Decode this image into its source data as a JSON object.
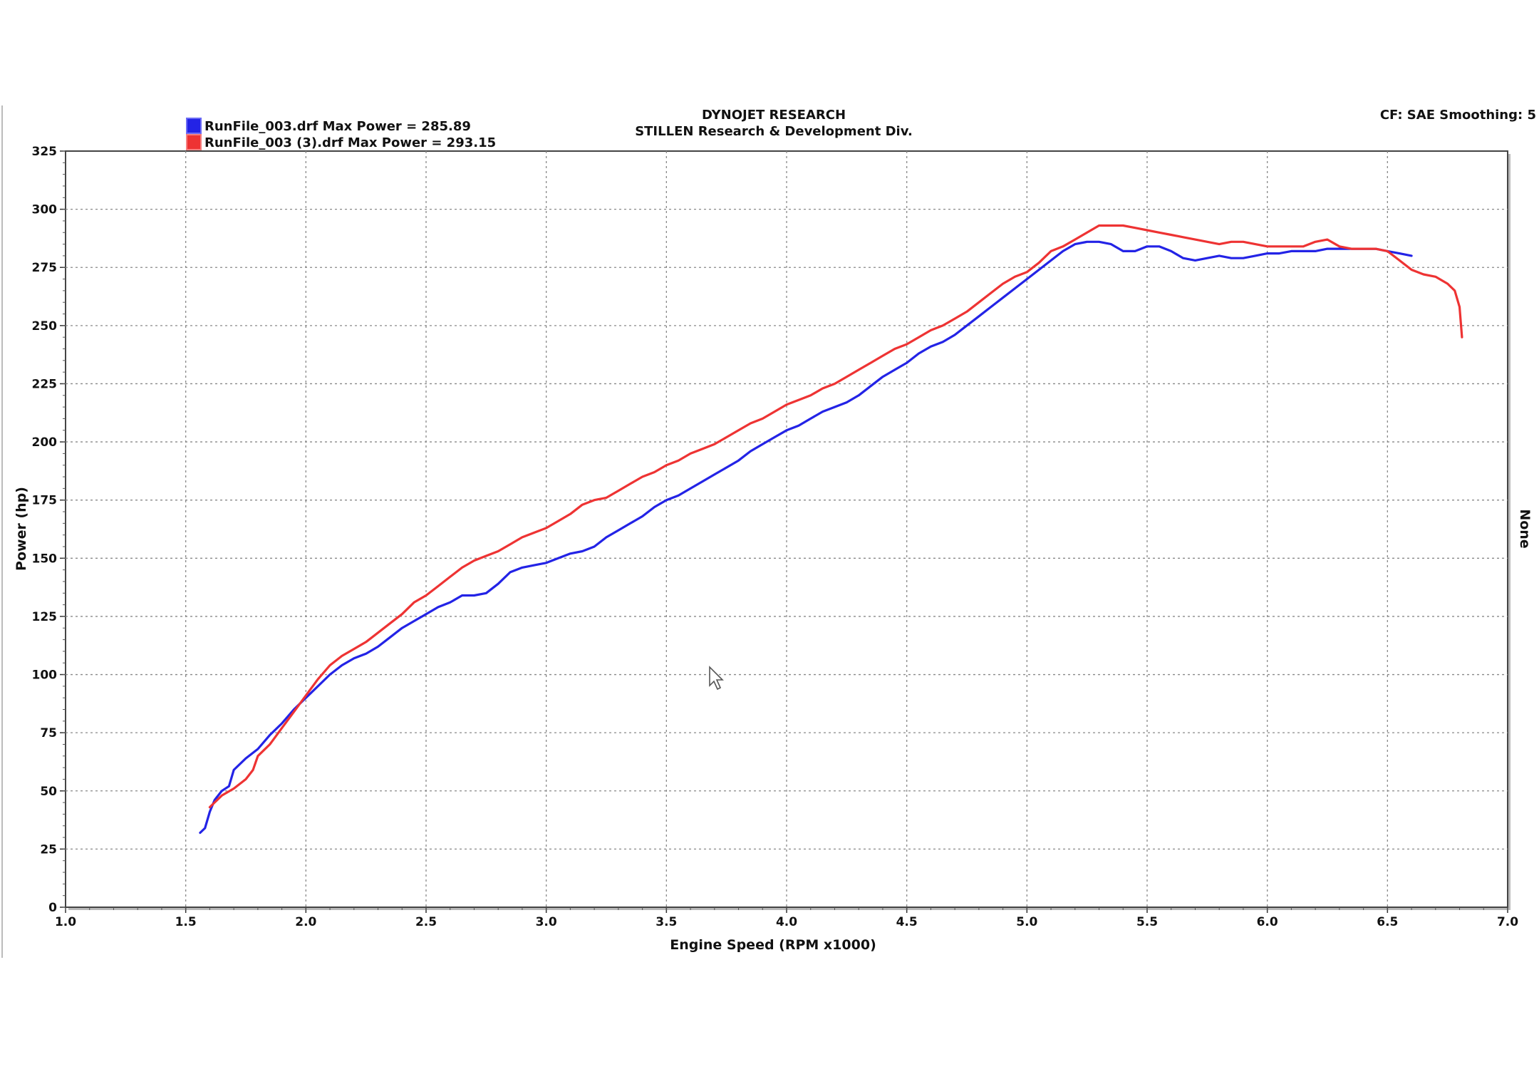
{
  "header": {
    "title": "DYNOJET RESEARCH",
    "subtitle": "STILLEN Research & Development Div.",
    "settings": "CF: SAE  Smoothing: 5",
    "right_axis_label": "None"
  },
  "chart_data": {
    "type": "line",
    "xlabel": "Engine Speed (RPM x1000)",
    "ylabel": "Power (hp)",
    "xlim": [
      1.0,
      7.0
    ],
    "ylim": [
      0,
      325
    ],
    "xticks": [
      "1.0",
      "1.5",
      "2.0",
      "2.5",
      "3.0",
      "3.5",
      "4.0",
      "4.5",
      "5.0",
      "5.5",
      "6.0",
      "6.5",
      "7.0"
    ],
    "yticks": [
      "0",
      "25",
      "50",
      "75",
      "100",
      "125",
      "150",
      "175",
      "200",
      "225",
      "250",
      "275",
      "300",
      "325"
    ],
    "grid": true,
    "legend_position": "top-left",
    "series": [
      {
        "name": "RunFile_003.drf Max Power = 285.89",
        "color": "#2323e6",
        "x": [
          1.56,
          1.58,
          1.6,
          1.62,
          1.65,
          1.68,
          1.7,
          1.75,
          1.8,
          1.85,
          1.9,
          1.95,
          2.0,
          2.05,
          2.1,
          2.15,
          2.2,
          2.25,
          2.3,
          2.35,
          2.4,
          2.45,
          2.5,
          2.55,
          2.6,
          2.65,
          2.7,
          2.75,
          2.8,
          2.85,
          2.9,
          2.95,
          3.0,
          3.05,
          3.1,
          3.15,
          3.2,
          3.25,
          3.3,
          3.35,
          3.4,
          3.45,
          3.5,
          3.55,
          3.6,
          3.65,
          3.7,
          3.75,
          3.8,
          3.85,
          3.9,
          3.95,
          4.0,
          4.05,
          4.1,
          4.15,
          4.2,
          4.25,
          4.3,
          4.35,
          4.4,
          4.45,
          4.5,
          4.55,
          4.6,
          4.65,
          4.7,
          4.75,
          4.8,
          4.85,
          4.9,
          4.95,
          5.0,
          5.05,
          5.1,
          5.15,
          5.2,
          5.25,
          5.3,
          5.35,
          5.4,
          5.45,
          5.5,
          5.55,
          5.6,
          5.65,
          5.7,
          5.75,
          5.8,
          5.85,
          5.9,
          5.95,
          6.0,
          6.05,
          6.1,
          6.15,
          6.2,
          6.25,
          6.3,
          6.35,
          6.4,
          6.45,
          6.5,
          6.55,
          6.6
        ],
        "y": [
          32,
          34,
          41,
          46,
          50,
          52,
          59,
          64,
          68,
          74,
          79,
          85,
          90,
          95,
          100,
          104,
          107,
          109,
          112,
          116,
          120,
          123,
          126,
          129,
          131,
          134,
          134,
          135,
          139,
          144,
          146,
          147,
          148,
          150,
          152,
          153,
          155,
          159,
          162,
          165,
          168,
          172,
          175,
          177,
          180,
          183,
          186,
          189,
          192,
          196,
          199,
          202,
          205,
          207,
          210,
          213,
          215,
          217,
          220,
          224,
          228,
          231,
          234,
          238,
          241,
          243,
          246,
          250,
          254,
          258,
          262,
          266,
          270,
          274,
          278,
          282,
          285,
          286,
          286,
          285,
          282,
          282,
          284,
          284,
          282,
          279,
          278,
          279,
          280,
          279,
          279,
          280,
          281,
          281,
          282,
          282,
          282,
          283,
          283,
          283,
          283,
          283,
          282,
          281,
          280
        ]
      },
      {
        "name": "RunFile_003 (3).drf Max Power = 293.15",
        "color": "#ee3333",
        "x": [
          1.6,
          1.62,
          1.65,
          1.7,
          1.75,
          1.78,
          1.8,
          1.85,
          1.9,
          1.95,
          2.0,
          2.05,
          2.1,
          2.15,
          2.2,
          2.25,
          2.3,
          2.35,
          2.4,
          2.45,
          2.5,
          2.55,
          2.6,
          2.65,
          2.7,
          2.75,
          2.8,
          2.85,
          2.9,
          2.95,
          3.0,
          3.05,
          3.1,
          3.15,
          3.2,
          3.25,
          3.3,
          3.35,
          3.4,
          3.45,
          3.5,
          3.55,
          3.6,
          3.65,
          3.7,
          3.75,
          3.8,
          3.85,
          3.9,
          3.95,
          4.0,
          4.05,
          4.1,
          4.15,
          4.2,
          4.25,
          4.3,
          4.35,
          4.4,
          4.45,
          4.5,
          4.55,
          4.6,
          4.65,
          4.7,
          4.75,
          4.8,
          4.85,
          4.9,
          4.95,
          5.0,
          5.05,
          5.1,
          5.15,
          5.2,
          5.25,
          5.3,
          5.35,
          5.4,
          5.45,
          5.5,
          5.55,
          5.6,
          5.65,
          5.7,
          5.75,
          5.8,
          5.85,
          5.9,
          5.95,
          6.0,
          6.05,
          6.1,
          6.15,
          6.2,
          6.25,
          6.3,
          6.35,
          6.4,
          6.45,
          6.5,
          6.55,
          6.6,
          6.65,
          6.7,
          6.75,
          6.78,
          6.8,
          6.81
        ],
        "y": [
          43,
          45,
          48,
          51,
          55,
          59,
          65,
          70,
          77,
          84,
          91,
          98,
          104,
          108,
          111,
          114,
          118,
          122,
          126,
          131,
          134,
          138,
          142,
          146,
          149,
          151,
          153,
          156,
          159,
          161,
          163,
          166,
          169,
          173,
          175,
          176,
          179,
          182,
          185,
          187,
          190,
          192,
          195,
          197,
          199,
          202,
          205,
          208,
          210,
          213,
          216,
          218,
          220,
          223,
          225,
          228,
          231,
          234,
          237,
          240,
          242,
          245,
          248,
          250,
          253,
          256,
          260,
          264,
          268,
          271,
          273,
          277,
          282,
          284,
          287,
          290,
          293,
          293,
          293,
          292,
          291,
          290,
          289,
          288,
          287,
          286,
          285,
          286,
          286,
          285,
          284,
          284,
          284,
          284,
          286,
          287,
          284,
          283,
          283,
          283,
          282,
          278,
          274,
          272,
          271,
          268,
          265,
          258,
          245
        ]
      }
    ]
  }
}
